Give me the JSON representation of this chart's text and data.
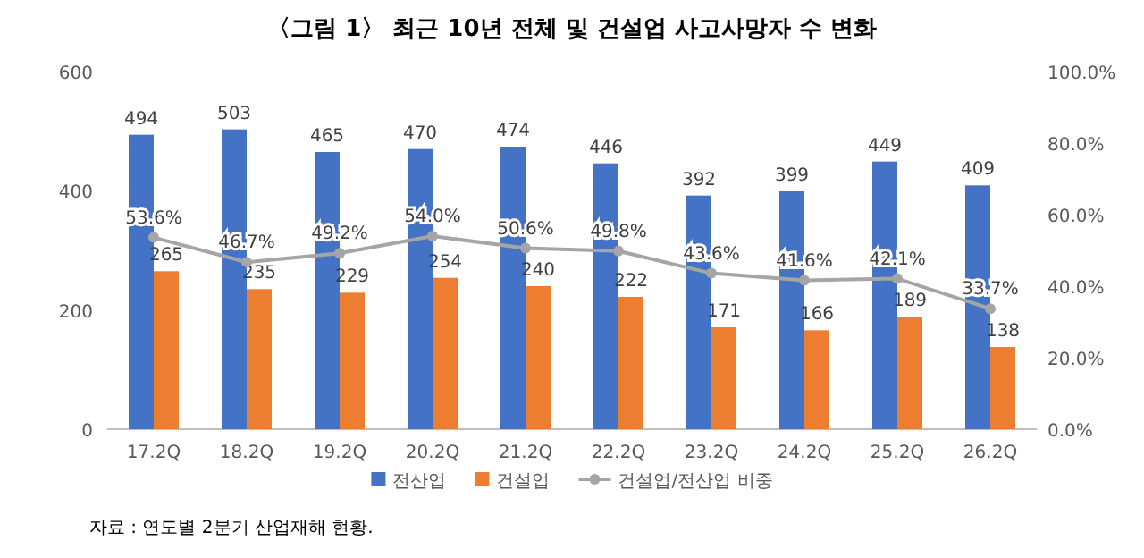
{
  "chart_data": {
    "type": "bar",
    "title": "〈그림 1〉 최근 10년 전체 및 건설업 사고사망자 수 변화",
    "categories": [
      "17.2Q",
      "18.2Q",
      "19.2Q",
      "20.2Q",
      "21.2Q",
      "22.2Q",
      "23.2Q",
      "24.2Q",
      "25.2Q",
      "26.2Q"
    ],
    "series": [
      {
        "name": "전산업",
        "color": "#4472c4",
        "values": [
          494,
          503,
          465,
          470,
          474,
          446,
          392,
          399,
          449,
          409
        ]
      },
      {
        "name": "건설업",
        "color": "#ed7d31",
        "values": [
          265,
          235,
          229,
          254,
          240,
          222,
          171,
          166,
          189,
          138
        ]
      },
      {
        "name": "건설업/전산업 비중",
        "type": "line",
        "axis": "y2",
        "color": "#a5a5a5",
        "marker": "circle",
        "values": [
          53.6,
          46.7,
          49.2,
          54.0,
          50.6,
          49.8,
          43.6,
          41.6,
          42.1,
          33.7
        ],
        "value_labels": [
          "53.6%",
          "46.7%",
          "49.2%",
          "54.0%",
          "50.6%",
          "49.8%",
          "43.6%",
          "41.6%",
          "42.1%",
          "33.7%"
        ]
      }
    ],
    "ylim": [
      0,
      600
    ],
    "yticks": [
      0,
      200,
      400,
      600
    ],
    "y2lim": [
      0,
      100
    ],
    "y2ticks": [
      {
        "value": 0,
        "label": "0.0%"
      },
      {
        "value": 20,
        "label": "20.0%"
      },
      {
        "value": 40,
        "label": "40.0%"
      },
      {
        "value": 60,
        "label": "60.0%"
      },
      {
        "value": 80,
        "label": "80.0%"
      },
      {
        "value": 100,
        "label": "100.0%"
      }
    ],
    "data_labels": true,
    "legend": "bottom",
    "grid": false,
    "annotations": [
      "자료 : 연도별 2분기 산업재해 현황."
    ]
  }
}
